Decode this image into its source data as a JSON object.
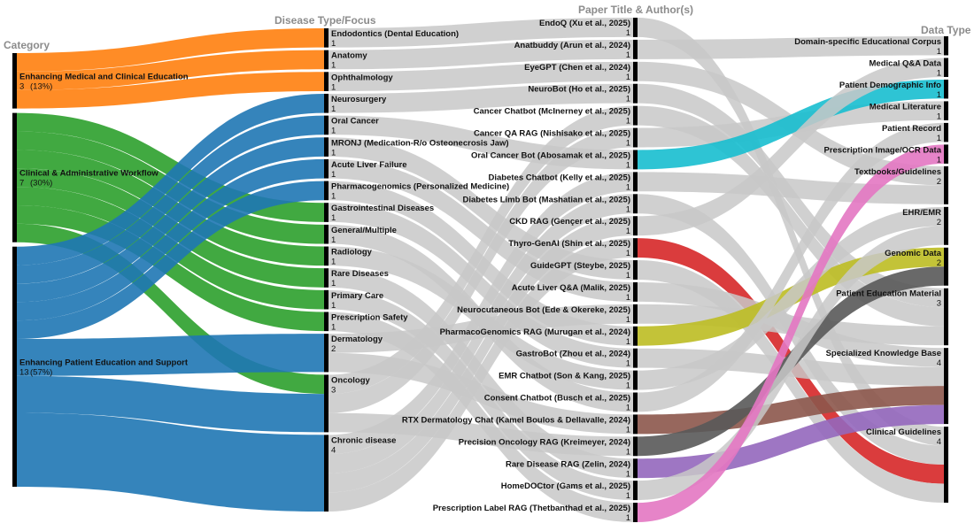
{
  "headers": {
    "category": "Category",
    "disease": "Disease Type/Focus",
    "paper": "Paper Title & Author(s)",
    "datatype": "Data Type"
  },
  "chart_data": {
    "type": "sankey",
    "colors": {
      "education": "#ff7f0e",
      "workflow": "#2ca02c",
      "patient": "#1f77b4",
      "link_grey": "#c8c8c8",
      "node_bar": "#000000",
      "cyan": "#17becf",
      "red": "#d62728",
      "olive": "#bcbd22",
      "brown": "#8c564b",
      "purple": "#9467bd",
      "pink": "#e377c2"
    },
    "columns": [
      {
        "key": "category",
        "nodes": [
          {
            "id": "edu",
            "label": "Enhancing Medical and Clinical Education",
            "value": "3",
            "pct": "(13%)",
            "color": "#ff7f0e"
          },
          {
            "id": "work",
            "label": "Clinical & Administrative Workflow",
            "value": "7",
            "pct": "(30%)",
            "color": "#2ca02c"
          },
          {
            "id": "pat",
            "label": "Enhancing Patient Education and Support",
            "value": "13",
            "pct": "(57%)",
            "color": "#1f77b4"
          }
        ]
      },
      {
        "key": "disease",
        "nodes": [
          {
            "id": "endo",
            "label": "Endodontics (Dental Education)",
            "value": "1"
          },
          {
            "id": "anat",
            "label": "Anatomy",
            "value": "1"
          },
          {
            "id": "oph",
            "label": "Ophthalmology",
            "value": "1"
          },
          {
            "id": "neuro",
            "label": "Neurosurgery",
            "value": "1"
          },
          {
            "id": "oralc",
            "label": "Oral Cancer",
            "value": "1"
          },
          {
            "id": "mronj",
            "label": "MRONJ (Medication-R/o Osteonecrosis Jaw)",
            "value": "1"
          },
          {
            "id": "liver",
            "label": "Acute Liver Failure",
            "value": "1"
          },
          {
            "id": "pharma",
            "label": "Pharmacogenomics (Personalized Medicine)",
            "value": "1"
          },
          {
            "id": "gi",
            "label": "Gastrointestinal Diseases",
            "value": "1"
          },
          {
            "id": "gen",
            "label": "General/Multiple",
            "value": "1"
          },
          {
            "id": "radio",
            "label": "Radiology",
            "value": "1"
          },
          {
            "id": "rare",
            "label": "Rare Diseases",
            "value": "1"
          },
          {
            "id": "prim",
            "label": "Primary Care",
            "value": "1"
          },
          {
            "id": "presc",
            "label": "Prescription Safety",
            "value": "1"
          },
          {
            "id": "derm",
            "label": "Dermatology",
            "value": "2"
          },
          {
            "id": "onc",
            "label": "Oncology",
            "value": "3"
          },
          {
            "id": "chron",
            "label": "Chronic disease",
            "value": "4"
          }
        ]
      },
      {
        "key": "paper",
        "nodes": [
          {
            "id": "p1",
            "label": "EndoQ (Xu et al., 2025)",
            "value": "1"
          },
          {
            "id": "p2",
            "label": "Anatbuddy (Arun et al., 2024)",
            "value": "1"
          },
          {
            "id": "p3",
            "label": "EyeGPT (Chen et al., 2024)",
            "value": "1"
          },
          {
            "id": "p4",
            "label": "NeuroBot (Ho et al., 2025)",
            "value": "1"
          },
          {
            "id": "p5",
            "label": "Cancer Chatbot (McInerney et al., 2025)",
            "value": "1"
          },
          {
            "id": "p6",
            "label": "Cancer QA RAG (Nishisako et al., 2025)",
            "value": "1"
          },
          {
            "id": "p7",
            "label": "Oral Cancer Bot (Abosamak et al., 2025)",
            "value": "1"
          },
          {
            "id": "p8",
            "label": "Diabetes Chatbot (Kelly et al., 2025)",
            "value": "1"
          },
          {
            "id": "p9",
            "label": "Diabetes Limb Bot (Mashatian et al., 2025)",
            "value": "1"
          },
          {
            "id": "p10",
            "label": "CKD RAG (Gençer et al., 2025)",
            "value": "1"
          },
          {
            "id": "p11",
            "label": "Thyro-GenAI (Shin et al., 2025)",
            "value": "1"
          },
          {
            "id": "p12",
            "label": "GuideGPT (Steybe, 2025)",
            "value": "1"
          },
          {
            "id": "p13",
            "label": "Acute Liver Q&A (Malik, 2025)",
            "value": "1"
          },
          {
            "id": "p14",
            "label": "Neurocutaneous Bot (Ede & Okereke, 2025)",
            "value": "1"
          },
          {
            "id": "p15",
            "label": "PharmacoGenomics RAG (Murugan et al., 2024)",
            "value": "1"
          },
          {
            "id": "p16",
            "label": "GastroBot (Zhou et al., 2024)",
            "value": "1"
          },
          {
            "id": "p17",
            "label": "EMR Chatbot (Son & Kang, 2025)",
            "value": "1"
          },
          {
            "id": "p18",
            "label": "Consent Chatbot (Busch et al., 2025)",
            "value": "1"
          },
          {
            "id": "p19",
            "label": "RTX Dermatology Chat (Kamel Boulos & Dellavalle, 2024)",
            "value": "1"
          },
          {
            "id": "p20",
            "label": "Precision Oncology RAG (Kreimeyer, 2024)",
            "value": "1"
          },
          {
            "id": "p21",
            "label": "Rare Disease RAG (Zelin, 2024)",
            "value": "1"
          },
          {
            "id": "p22",
            "label": "HomeDOCtor (Gams et al., 2025)",
            "value": "1"
          },
          {
            "id": "p23",
            "label": "Prescription Label RAG (Thetbanthad et al., 2025)",
            "value": "1"
          }
        ]
      },
      {
        "key": "datatype",
        "nodes": [
          {
            "id": "d1",
            "label": "Domain-specific Educational Corpus",
            "value": "1"
          },
          {
            "id": "d2",
            "label": "Medical Q&A Data",
            "value": "1"
          },
          {
            "id": "d3",
            "label": "Patient Demographic Info",
            "value": "1"
          },
          {
            "id": "d4",
            "label": "Medical Literature",
            "value": "1"
          },
          {
            "id": "d5",
            "label": "Patient Record",
            "value": "1"
          },
          {
            "id": "d6",
            "label": "Prescription Image/OCR Data",
            "value": "1"
          },
          {
            "id": "d7",
            "label": "Textbooks/Guidelines",
            "value": "2"
          },
          {
            "id": "d8",
            "label": "EHR/EMR",
            "value": "2"
          },
          {
            "id": "d9",
            "label": "Genomic Data",
            "value": "2"
          },
          {
            "id": "d10",
            "label": "Patient Education Material",
            "value": "3"
          },
          {
            "id": "d11",
            "label": "Specialized Knowledge Base",
            "value": "4"
          },
          {
            "id": "d12",
            "label": "Clinical Guidelines",
            "value": "4"
          }
        ]
      }
    ],
    "links": [
      {
        "source": "edu",
        "target": "endo",
        "value": 1,
        "color": "#ff7f0e"
      },
      {
        "source": "edu",
        "target": "anat",
        "value": 1,
        "color": "#ff7f0e"
      },
      {
        "source": "edu",
        "target": "oph",
        "value": 1,
        "color": "#ff7f0e"
      },
      {
        "source": "work",
        "target": "gi",
        "value": 1,
        "color": "#2ca02c"
      },
      {
        "source": "work",
        "target": "gen",
        "value": 1,
        "color": "#2ca02c"
      },
      {
        "source": "work",
        "target": "radio",
        "value": 1,
        "color": "#2ca02c"
      },
      {
        "source": "work",
        "target": "rare",
        "value": 1,
        "color": "#2ca02c"
      },
      {
        "source": "work",
        "target": "prim",
        "value": 1,
        "color": "#2ca02c"
      },
      {
        "source": "work",
        "target": "presc",
        "value": 1,
        "color": "#2ca02c"
      },
      {
        "source": "work",
        "target": "onc",
        "value": 1,
        "color": "#2ca02c"
      },
      {
        "source": "pat",
        "target": "neuro",
        "value": 1,
        "color": "#1f77b4"
      },
      {
        "source": "pat",
        "target": "oralc",
        "value": 1,
        "color": "#1f77b4"
      },
      {
        "source": "pat",
        "target": "mronj",
        "value": 1,
        "color": "#1f77b4"
      },
      {
        "source": "pat",
        "target": "liver",
        "value": 1,
        "color": "#1f77b4"
      },
      {
        "source": "pat",
        "target": "pharma",
        "value": 1,
        "color": "#1f77b4"
      },
      {
        "source": "pat",
        "target": "derm",
        "value": 2,
        "color": "#1f77b4"
      },
      {
        "source": "pat",
        "target": "onc",
        "value": 2,
        "color": "#1f77b4"
      },
      {
        "source": "pat",
        "target": "chron",
        "value": 4,
        "color": "#1f77b4"
      },
      {
        "source": "endo",
        "target": "p1",
        "value": 1,
        "color": "#c8c8c8"
      },
      {
        "source": "anat",
        "target": "p2",
        "value": 1,
        "color": "#c8c8c8"
      },
      {
        "source": "oph",
        "target": "p3",
        "value": 1,
        "color": "#c8c8c8"
      },
      {
        "source": "neuro",
        "target": "p4",
        "value": 1,
        "color": "#c8c8c8"
      },
      {
        "source": "oralc",
        "target": "p7",
        "value": 1,
        "color": "#c8c8c8"
      },
      {
        "source": "mronj",
        "target": "p12",
        "value": 1,
        "color": "#c8c8c8"
      },
      {
        "source": "liver",
        "target": "p13",
        "value": 1,
        "color": "#c8c8c8"
      },
      {
        "source": "pharma",
        "target": "p15",
        "value": 1,
        "color": "#c8c8c8"
      },
      {
        "source": "gi",
        "target": "p16",
        "value": 1,
        "color": "#c8c8c8"
      },
      {
        "source": "gen",
        "target": "p18",
        "value": 1,
        "color": "#c8c8c8"
      },
      {
        "source": "radio",
        "target": "p17",
        "value": 1,
        "color": "#c8c8c8"
      },
      {
        "source": "rare",
        "target": "p21",
        "value": 1,
        "color": "#c8c8c8"
      },
      {
        "source": "prim",
        "target": "p22",
        "value": 1,
        "color": "#c8c8c8"
      },
      {
        "source": "presc",
        "target": "p23",
        "value": 1,
        "color": "#c8c8c8"
      },
      {
        "source": "derm",
        "target": "p14",
        "value": 1,
        "color": "#c8c8c8"
      },
      {
        "source": "derm",
        "target": "p19",
        "value": 1,
        "color": "#c8c8c8"
      },
      {
        "source": "onc",
        "target": "p5",
        "value": 1,
        "color": "#c8c8c8"
      },
      {
        "source": "onc",
        "target": "p6",
        "value": 1,
        "color": "#c8c8c8"
      },
      {
        "source": "onc",
        "target": "p20",
        "value": 1,
        "color": "#c8c8c8"
      },
      {
        "source": "chron",
        "target": "p8",
        "value": 1,
        "color": "#c8c8c8"
      },
      {
        "source": "chron",
        "target": "p9",
        "value": 1,
        "color": "#c8c8c8"
      },
      {
        "source": "chron",
        "target": "p10",
        "value": 1,
        "color": "#c8c8c8"
      },
      {
        "source": "chron",
        "target": "p11",
        "value": 1,
        "color": "#c8c8c8"
      },
      {
        "source": "p1",
        "target": "d12",
        "value": 1,
        "color": "#c8c8c8"
      },
      {
        "source": "p2",
        "target": "d1",
        "value": 1,
        "color": "#c8c8c8"
      },
      {
        "source": "p3",
        "target": "d7",
        "value": 1,
        "color": "#c8c8c8"
      },
      {
        "source": "p4",
        "target": "d10",
        "value": 1,
        "color": "#c8c8c8"
      },
      {
        "source": "p5",
        "target": "d10",
        "value": 1,
        "color": "#c8c8c8"
      },
      {
        "source": "p6",
        "target": "d4",
        "value": 1,
        "color": "#c8c8c8"
      },
      {
        "source": "p7",
        "target": "d3",
        "value": 1,
        "color": "#17becf"
      },
      {
        "source": "p8",
        "target": "d7",
        "value": 1,
        "color": "#c8c8c8"
      },
      {
        "source": "p9",
        "target": "d12",
        "value": 1,
        "color": "#c8c8c8"
      },
      {
        "source": "p10",
        "target": "d2",
        "value": 1,
        "color": "#c8c8c8"
      },
      {
        "source": "p11",
        "target": "d12",
        "value": 1,
        "color": "#d62728"
      },
      {
        "source": "p12",
        "target": "d12",
        "value": 1,
        "color": "#c8c8c8"
      },
      {
        "source": "p13",
        "target": "d11",
        "value": 1,
        "color": "#c8c8c8"
      },
      {
        "source": "p14",
        "target": "d10",
        "value": 1,
        "color": "#c8c8c8"
      },
      {
        "source": "p15",
        "target": "d9",
        "value": 1,
        "color": "#bcbd22"
      },
      {
        "source": "p16",
        "target": "d11",
        "value": 1,
        "color": "#c8c8c8"
      },
      {
        "source": "p17",
        "target": "d8",
        "value": 1,
        "color": "#c8c8c8"
      },
      {
        "source": "p18",
        "target": "d5",
        "value": 1,
        "color": "#c8c8c8"
      },
      {
        "source": "p19",
        "target": "d11",
        "value": 1,
        "color": "#8c564b"
      },
      {
        "source": "p20",
        "target": "d9",
        "value": 1,
        "color": "#595959"
      },
      {
        "source": "p21",
        "target": "d11",
        "value": 1,
        "color": "#9467bd"
      },
      {
        "source": "p22",
        "target": "d8",
        "value": 1,
        "color": "#c8c8c8"
      },
      {
        "source": "p23",
        "target": "d6",
        "value": 1,
        "color": "#e377c2"
      }
    ]
  }
}
